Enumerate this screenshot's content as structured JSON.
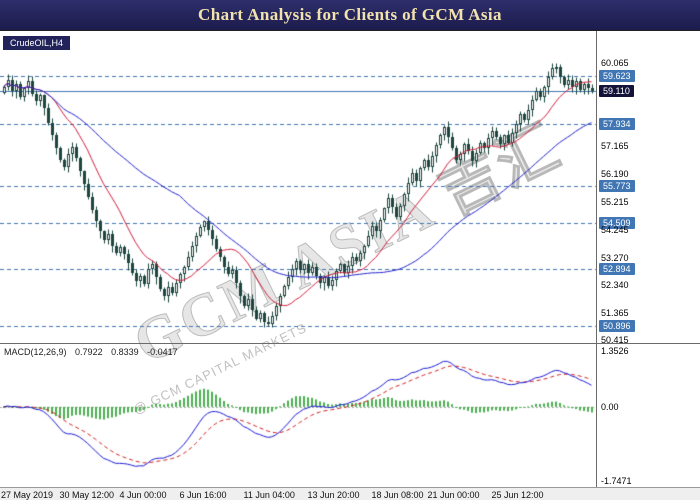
{
  "header": {
    "title": "Chart Analysis for Clients of GCM Asia"
  },
  "chart": {
    "symbol_label": "CrudeOIL,H4",
    "watermark": {
      "main": "GCM ASIA 吉汇",
      "sub": "@ GCM CAPITAL MARKETS"
    },
    "colors": {
      "header_bg": "#23235c",
      "header_text": "#f2e2ae",
      "level": "#4076b4",
      "current_line": "#4076b4",
      "badge_level": "#4076b4",
      "badge_current": "#131339",
      "candle": "#1c463e",
      "candle_up_fill": "#ffffff",
      "ma_fast": "#cf1f3c",
      "ma_slow": "#2323c8",
      "macd_line": "#1b1bd0",
      "macd_signal": "#d02020",
      "macd_hist": "#4caf50"
    }
  },
  "chart_data": {
    "type": "candlestick",
    "symbol": "CrudeOIL",
    "timeframe": "H4",
    "ylim": [
      50.3,
      61.2
    ],
    "current_price": 59.11,
    "levels": [
      59.623,
      57.934,
      55.773,
      54.509,
      52.894,
      50.896
    ],
    "price_ticks": [
      {
        "text": "60.065",
        "type": "plain"
      },
      {
        "text": "59.623",
        "type": "level"
      },
      {
        "text": "59.110",
        "type": "current"
      },
      {
        "text": "57.934",
        "type": "level"
      },
      {
        "text": "57.165",
        "type": "plain"
      },
      {
        "text": "56.190",
        "type": "plain"
      },
      {
        "text": "55.773",
        "type": "level"
      },
      {
        "text": "55.215",
        "type": "plain"
      },
      {
        "text": "54.509",
        "type": "level"
      },
      {
        "text": "54.245",
        "type": "plain"
      },
      {
        "text": "53.270",
        "type": "plain"
      },
      {
        "text": "52.894",
        "type": "level"
      },
      {
        "text": "52.340",
        "type": "plain"
      },
      {
        "text": "51.365",
        "type": "plain"
      },
      {
        "text": "50.896",
        "type": "level"
      },
      {
        "text": "50.415",
        "type": "plain"
      }
    ],
    "x_labels": [
      {
        "label": "27 May 2019",
        "bar": 0
      },
      {
        "label": "30 May 12:00",
        "bar": 15
      },
      {
        "label": "4 Jun 00:00",
        "bar": 30
      },
      {
        "label": "6 Jun 16:00",
        "bar": 45
      },
      {
        "label": "11 Jun 04:00",
        "bar": 61
      },
      {
        "label": "13 Jun 20:00",
        "bar": 77
      },
      {
        "label": "18 Jun 08:00",
        "bar": 93
      },
      {
        "label": "21 Jun 00:00",
        "bar": 107
      },
      {
        "label": "25 Jun 12:00",
        "bar": 123
      }
    ],
    "closes": [
      59.25,
      59.5,
      59.1,
      59.35,
      58.9,
      59.2,
      59.45,
      59.0,
      58.75,
      58.95,
      58.5,
      58.0,
      57.55,
      57.1,
      56.7,
      56.45,
      56.9,
      57.15,
      56.75,
      56.3,
      55.85,
      55.4,
      54.95,
      54.55,
      54.2,
      53.9,
      54.1,
      53.7,
      53.45,
      53.65,
      53.4,
      53.1,
      52.75,
      52.45,
      52.65,
      52.35,
      52.9,
      53.05,
      52.6,
      52.2,
      51.95,
      52.25,
      52.05,
      52.4,
      52.7,
      52.95,
      53.3,
      53.7,
      54.05,
      54.35,
      54.55,
      54.25,
      53.95,
      53.6,
      53.3,
      52.95,
      52.7,
      52.85,
      52.4,
      51.95,
      51.6,
      51.85,
      51.45,
      51.15,
      51.35,
      51.05,
      50.95,
      51.25,
      51.6,
      51.95,
      52.3,
      52.6,
      52.9,
      53.15,
      52.85,
      53.05,
      52.75,
      52.95,
      52.65,
      52.4,
      52.6,
      52.3,
      52.5,
      52.8,
      53.05,
      52.75,
      53.0,
      53.3,
      53.15,
      53.45,
      53.7,
      54.05,
      54.4,
      54.2,
      54.6,
      55.0,
      55.35,
      55.05,
      54.7,
      55.1,
      55.5,
      55.9,
      56.25,
      55.95,
      56.4,
      56.7,
      56.45,
      56.85,
      57.2,
      57.55,
      57.85,
      57.5,
      57.1,
      56.7,
      56.9,
      57.25,
      57.0,
      56.65,
      56.95,
      57.3,
      57.1,
      57.45,
      57.7,
      57.5,
      57.25,
      57.55,
      57.3,
      57.65,
      57.95,
      58.3,
      58.1,
      58.45,
      58.8,
      59.1,
      58.9,
      59.25,
      59.6,
      59.9,
      59.95,
      59.6,
      59.3,
      59.5,
      59.25,
      59.45,
      59.15,
      59.35,
      59.2,
      59.11
    ],
    "indicator": {
      "name": "MACD",
      "label": "MACD(12,26,9)",
      "periods": [
        12,
        26,
        9
      ],
      "values": [
        "0.7922",
        "0.8339",
        "-0.0417"
      ],
      "axis_ticks": [
        "1.3526",
        "0.00",
        "-1.7471"
      ],
      "ylim": [
        -1.85,
        1.45
      ]
    }
  }
}
